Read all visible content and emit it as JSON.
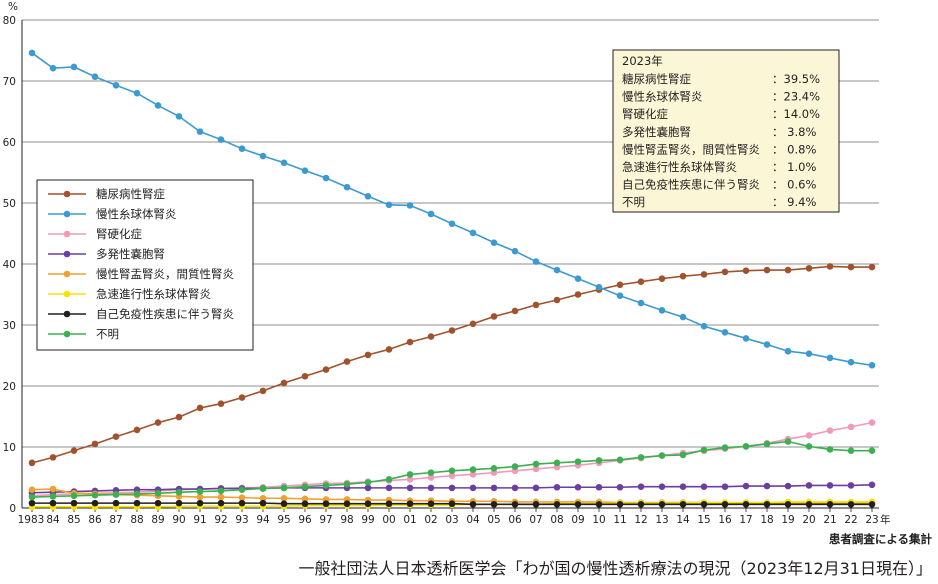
{
  "chart_data": {
    "type": "line",
    "y_unit": "%",
    "x_unit": "年",
    "note": "患者調査による集計",
    "source": "一般社団法人日本透析医学会「わが国の慢性透析療法の現況（2023年12月31日現在）」",
    "ylim": [
      0,
      80
    ],
    "y_ticks": [
      0,
      10,
      20,
      30,
      40,
      50,
      60,
      70,
      80
    ],
    "grid": true,
    "x_labels": [
      "1983",
      "84",
      "85",
      "86",
      "87",
      "88",
      "89",
      "90",
      "91",
      "92",
      "93",
      "94",
      "95",
      "96",
      "97",
      "98",
      "99",
      "00",
      "01",
      "02",
      "03",
      "04",
      "05",
      "06",
      "07",
      "08",
      "09",
      "10",
      "11",
      "12",
      "13",
      "14",
      "15",
      "16",
      "17",
      "18",
      "19",
      "20",
      "21",
      "22",
      "23"
    ],
    "legend_position": "left-middle",
    "series": [
      {
        "name": "糖尿病性腎症",
        "color": "#a0522d",
        "values": [
          7.4,
          8.3,
          9.4,
          10.5,
          11.7,
          12.8,
          14.0,
          14.9,
          16.4,
          17.1,
          18.1,
          19.2,
          20.5,
          21.6,
          22.7,
          24.0,
          25.1,
          26.0,
          27.2,
          28.1,
          29.1,
          30.2,
          31.4,
          32.3,
          33.3,
          34.1,
          35.0,
          35.8,
          36.6,
          37.1,
          37.6,
          38.0,
          38.3,
          38.7,
          38.9,
          39.0,
          39.0,
          39.3,
          39.6,
          39.5,
          39.5
        ]
      },
      {
        "name": "慢性糸球体腎炎",
        "color": "#3d9ad1",
        "values": [
          74.6,
          72.1,
          72.3,
          70.7,
          69.3,
          68.0,
          66.0,
          64.2,
          61.7,
          60.4,
          58.9,
          57.7,
          56.6,
          55.3,
          54.1,
          52.6,
          51.1,
          49.7,
          49.6,
          48.2,
          46.6,
          45.1,
          43.5,
          42.1,
          40.4,
          39.0,
          37.6,
          36.2,
          34.8,
          33.6,
          32.4,
          31.3,
          29.8,
          28.8,
          27.8,
          26.8,
          25.7,
          25.3,
          24.6,
          23.9,
          23.4
        ]
      },
      {
        "name": "腎硬化症",
        "color": "#ef9ab8",
        "values": [
          2.0,
          2.2,
          2.3,
          2.4,
          2.5,
          2.6,
          2.8,
          3.0,
          3.1,
          3.2,
          3.3,
          3.4,
          3.6,
          3.8,
          4.0,
          4.1,
          4.3,
          4.5,
          4.7,
          5.0,
          5.3,
          5.5,
          5.8,
          6.1,
          6.4,
          6.7,
          7.0,
          7.4,
          7.8,
          8.2,
          8.6,
          9.0,
          9.4,
          9.7,
          10.1,
          10.6,
          11.3,
          11.9,
          12.7,
          13.3,
          14.0
        ]
      },
      {
        "name": "多発性嚢胞腎",
        "color": "#6b3fa0",
        "values": [
          2.5,
          2.6,
          2.7,
          2.8,
          2.9,
          3.0,
          3.0,
          3.1,
          3.1,
          3.2,
          3.2,
          3.2,
          3.3,
          3.3,
          3.3,
          3.3,
          3.3,
          3.3,
          3.3,
          3.3,
          3.3,
          3.3,
          3.3,
          3.3,
          3.3,
          3.4,
          3.4,
          3.4,
          3.4,
          3.5,
          3.5,
          3.5,
          3.5,
          3.5,
          3.6,
          3.6,
          3.6,
          3.7,
          3.7,
          3.7,
          3.8
        ]
      },
      {
        "name": "慢性腎盂腎炎，間質性腎炎",
        "color": "#f0a030",
        "values": [
          3.0,
          3.1,
          2.4,
          2.3,
          2.2,
          2.1,
          2.0,
          1.9,
          1.8,
          1.8,
          1.7,
          1.6,
          1.6,
          1.5,
          1.4,
          1.4,
          1.3,
          1.3,
          1.2,
          1.2,
          1.1,
          1.1,
          1.1,
          1.0,
          1.0,
          1.0,
          1.0,
          1.0,
          0.9,
          0.9,
          0.9,
          0.9,
          0.9,
          0.8,
          0.8,
          0.8,
          0.8,
          0.8,
          0.8,
          0.8,
          0.8
        ]
      },
      {
        "name": "急速進行性糸球体腎炎",
        "color": "#f5e400",
        "values": [
          0.2,
          0.2,
          0.2,
          0.2,
          0.2,
          0.2,
          0.2,
          0.3,
          0.3,
          0.3,
          0.3,
          0.3,
          0.3,
          0.4,
          0.4,
          0.4,
          0.4,
          0.5,
          0.5,
          0.5,
          0.5,
          0.6,
          0.6,
          0.6,
          0.6,
          0.7,
          0.7,
          0.7,
          0.8,
          0.8,
          0.8,
          0.8,
          0.9,
          0.9,
          0.9,
          0.9,
          1.0,
          1.0,
          1.0,
          1.0,
          1.0
        ]
      },
      {
        "name": "自己免疫性疾患に伴う腎炎",
        "color": "#231f20",
        "values": [
          0.8,
          0.8,
          0.8,
          0.8,
          0.8,
          0.8,
          0.8,
          0.8,
          0.8,
          0.8,
          0.8,
          0.8,
          0.7,
          0.7,
          0.7,
          0.7,
          0.7,
          0.7,
          0.7,
          0.7,
          0.7,
          0.6,
          0.6,
          0.6,
          0.6,
          0.6,
          0.6,
          0.6,
          0.6,
          0.6,
          0.6,
          0.6,
          0.6,
          0.6,
          0.6,
          0.6,
          0.6,
          0.6,
          0.6,
          0.6,
          0.6
        ]
      },
      {
        "name": "不明",
        "color": "#3ab04f",
        "values": [
          1.8,
          1.9,
          2.0,
          2.1,
          2.2,
          2.3,
          2.4,
          2.6,
          2.7,
          2.8,
          3.0,
          3.2,
          3.3,
          3.5,
          3.7,
          3.9,
          4.2,
          4.7,
          5.5,
          5.8,
          6.1,
          6.3,
          6.5,
          6.8,
          7.2,
          7.4,
          7.6,
          7.8,
          7.9,
          8.3,
          8.6,
          8.7,
          9.5,
          9.9,
          10.1,
          10.5,
          10.9,
          10.1,
          9.6,
          9.4,
          9.4
        ]
      }
    ],
    "summary_box": {
      "title": "2023年",
      "rows": [
        {
          "label": "糖尿病性腎症",
          "value": "：39.5%"
        },
        {
          "label": "慢性糸球体腎炎",
          "value": "：23.4%"
        },
        {
          "label": "腎硬化症",
          "value": "：14.0%"
        },
        {
          "label": "多発性嚢胞腎",
          "value": "：  3.8%"
        },
        {
          "label": "慢性腎盂腎炎，間質性腎炎",
          "value": "：  0.8%"
        },
        {
          "label": "急速進行性糸球体腎炎",
          "value": "：  1.0%"
        },
        {
          "label": "自己免疫性疾患に伴う腎炎",
          "value": "：  0.6%"
        },
        {
          "label": "不明",
          "value": "：  9.4%"
        }
      ],
      "background": "#fbf6d6"
    }
  }
}
